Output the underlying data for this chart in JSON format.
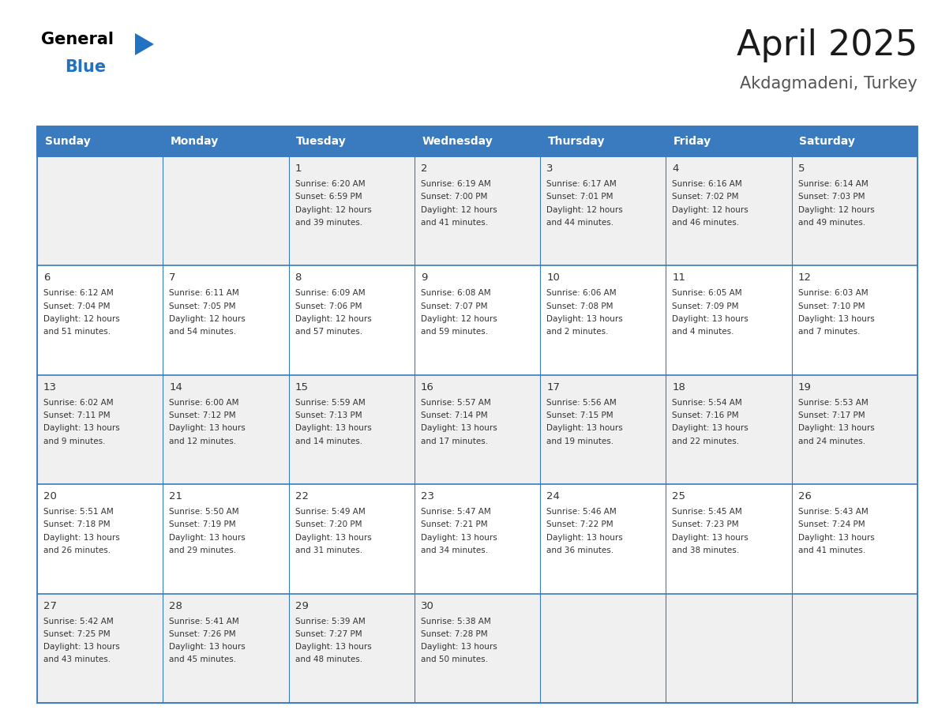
{
  "title": "April 2025",
  "subtitle": "Akdagmadeni, Turkey",
  "header_color": "#3a7abf",
  "header_text_color": "#ffffff",
  "row_bg_colors": [
    "#f0f0f0",
    "#ffffff",
    "#f0f0f0",
    "#ffffff",
    "#f0f0f0"
  ],
  "text_color": "#333333",
  "border_color": "#3a7abf",
  "days_of_week": [
    "Sunday",
    "Monday",
    "Tuesday",
    "Wednesday",
    "Thursday",
    "Friday",
    "Saturday"
  ],
  "calendar": [
    [
      {
        "day": "",
        "sunrise": "",
        "sunset": "",
        "daylight": ""
      },
      {
        "day": "",
        "sunrise": "",
        "sunset": "",
        "daylight": ""
      },
      {
        "day": "1",
        "sunrise": "6:20 AM",
        "sunset": "6:59 PM",
        "daylight": "12 hours and 39 minutes."
      },
      {
        "day": "2",
        "sunrise": "6:19 AM",
        "sunset": "7:00 PM",
        "daylight": "12 hours and 41 minutes."
      },
      {
        "day": "3",
        "sunrise": "6:17 AM",
        "sunset": "7:01 PM",
        "daylight": "12 hours and 44 minutes."
      },
      {
        "day": "4",
        "sunrise": "6:16 AM",
        "sunset": "7:02 PM",
        "daylight": "12 hours and 46 minutes."
      },
      {
        "day": "5",
        "sunrise": "6:14 AM",
        "sunset": "7:03 PM",
        "daylight": "12 hours and 49 minutes."
      }
    ],
    [
      {
        "day": "6",
        "sunrise": "6:12 AM",
        "sunset": "7:04 PM",
        "daylight": "12 hours and 51 minutes."
      },
      {
        "day": "7",
        "sunrise": "6:11 AM",
        "sunset": "7:05 PM",
        "daylight": "12 hours and 54 minutes."
      },
      {
        "day": "8",
        "sunrise": "6:09 AM",
        "sunset": "7:06 PM",
        "daylight": "12 hours and 57 minutes."
      },
      {
        "day": "9",
        "sunrise": "6:08 AM",
        "sunset": "7:07 PM",
        "daylight": "12 hours and 59 minutes."
      },
      {
        "day": "10",
        "sunrise": "6:06 AM",
        "sunset": "7:08 PM",
        "daylight": "13 hours and 2 minutes."
      },
      {
        "day": "11",
        "sunrise": "6:05 AM",
        "sunset": "7:09 PM",
        "daylight": "13 hours and 4 minutes."
      },
      {
        "day": "12",
        "sunrise": "6:03 AM",
        "sunset": "7:10 PM",
        "daylight": "13 hours and 7 minutes."
      }
    ],
    [
      {
        "day": "13",
        "sunrise": "6:02 AM",
        "sunset": "7:11 PM",
        "daylight": "13 hours and 9 minutes."
      },
      {
        "day": "14",
        "sunrise": "6:00 AM",
        "sunset": "7:12 PM",
        "daylight": "13 hours and 12 minutes."
      },
      {
        "day": "15",
        "sunrise": "5:59 AM",
        "sunset": "7:13 PM",
        "daylight": "13 hours and 14 minutes."
      },
      {
        "day": "16",
        "sunrise": "5:57 AM",
        "sunset": "7:14 PM",
        "daylight": "13 hours and 17 minutes."
      },
      {
        "day": "17",
        "sunrise": "5:56 AM",
        "sunset": "7:15 PM",
        "daylight": "13 hours and 19 minutes."
      },
      {
        "day": "18",
        "sunrise": "5:54 AM",
        "sunset": "7:16 PM",
        "daylight": "13 hours and 22 minutes."
      },
      {
        "day": "19",
        "sunrise": "5:53 AM",
        "sunset": "7:17 PM",
        "daylight": "13 hours and 24 minutes."
      }
    ],
    [
      {
        "day": "20",
        "sunrise": "5:51 AM",
        "sunset": "7:18 PM",
        "daylight": "13 hours and 26 minutes."
      },
      {
        "day": "21",
        "sunrise": "5:50 AM",
        "sunset": "7:19 PM",
        "daylight": "13 hours and 29 minutes."
      },
      {
        "day": "22",
        "sunrise": "5:49 AM",
        "sunset": "7:20 PM",
        "daylight": "13 hours and 31 minutes."
      },
      {
        "day": "23",
        "sunrise": "5:47 AM",
        "sunset": "7:21 PM",
        "daylight": "13 hours and 34 minutes."
      },
      {
        "day": "24",
        "sunrise": "5:46 AM",
        "sunset": "7:22 PM",
        "daylight": "13 hours and 36 minutes."
      },
      {
        "day": "25",
        "sunrise": "5:45 AM",
        "sunset": "7:23 PM",
        "daylight": "13 hours and 38 minutes."
      },
      {
        "day": "26",
        "sunrise": "5:43 AM",
        "sunset": "7:24 PM",
        "daylight": "13 hours and 41 minutes."
      }
    ],
    [
      {
        "day": "27",
        "sunrise": "5:42 AM",
        "sunset": "7:25 PM",
        "daylight": "13 hours and 43 minutes."
      },
      {
        "day": "28",
        "sunrise": "5:41 AM",
        "sunset": "7:26 PM",
        "daylight": "13 hours and 45 minutes."
      },
      {
        "day": "29",
        "sunrise": "5:39 AM",
        "sunset": "7:27 PM",
        "daylight": "13 hours and 48 minutes."
      },
      {
        "day": "30",
        "sunrise": "5:38 AM",
        "sunset": "7:28 PM",
        "daylight": "13 hours and 50 minutes."
      },
      {
        "day": "",
        "sunrise": "",
        "sunset": "",
        "daylight": ""
      },
      {
        "day": "",
        "sunrise": "",
        "sunset": "",
        "daylight": ""
      },
      {
        "day": "",
        "sunrise": "",
        "sunset": "",
        "daylight": ""
      }
    ]
  ],
  "logo_text1": "General",
  "logo_text2": "Blue",
  "logo_color1": "#000000",
  "logo_color2": "#2272c3",
  "logo_triangle_color": "#2272c3",
  "title_color": "#1a1a1a",
  "subtitle_color": "#555555"
}
